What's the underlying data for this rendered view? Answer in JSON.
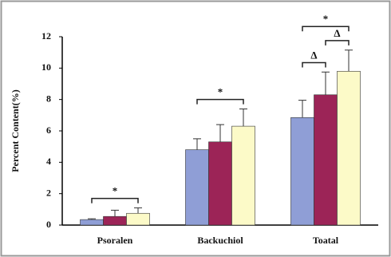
{
  "chart_data": {
    "type": "bar",
    "y_label": "Percent Content(%)",
    "categories": [
      "Psoralen",
      "Backuchiol",
      "Toatal"
    ],
    "series": [
      {
        "color": "#8f9ed6",
        "values": [
          0.35,
          4.8,
          6.85
        ],
        "errors": [
          0.05,
          0.7,
          1.1
        ]
      },
      {
        "color": "#9c2457",
        "values": [
          0.55,
          5.3,
          8.3
        ],
        "errors": [
          0.4,
          1.1,
          1.45
        ]
      },
      {
        "color": "#fcfac8",
        "values": [
          0.75,
          6.3,
          9.8
        ],
        "errors": [
          0.35,
          1.1,
          1.35
        ]
      }
    ],
    "annotations": [
      {
        "text": "*",
        "category": 0,
        "from_series": 0,
        "to_series": 2
      },
      {
        "text": "*",
        "category": 1,
        "from_series": 0,
        "to_series": 2
      },
      {
        "text": "Δ",
        "category": 2,
        "from_series": 0,
        "to_series": 1
      },
      {
        "text": "Δ",
        "category": 2,
        "from_series": 1,
        "to_series": 2
      },
      {
        "text": "*",
        "category": 2,
        "from_series": 0,
        "to_series": 2
      }
    ],
    "ylim": [
      0,
      12
    ],
    "yticks": [
      0,
      2,
      4,
      6,
      8,
      10,
      12
    ],
    "grid": false
  }
}
